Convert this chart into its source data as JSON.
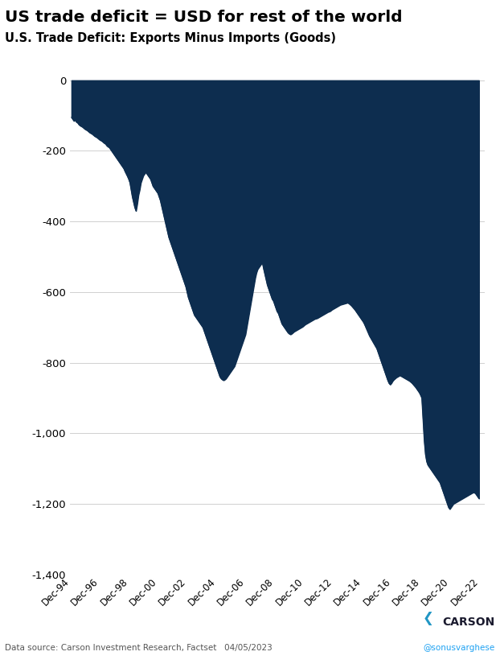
{
  "title": "US trade deficit = USD for rest of the world",
  "subtitle": "U.S. Trade Deficit: Exports Minus Imports (Goods)",
  "fill_color": "#0d2d4f",
  "background_color": "#ffffff",
  "ylim": [
    -1400,
    30
  ],
  "yticks": [
    0,
    -200,
    -400,
    -600,
    -800,
    -1000,
    -1200,
    -1400
  ],
  "footnote": "Data source: Carson Investment Research, Factset   04/05/2023",
  "twitter": "@sonusvarghese",
  "xtick_labels": [
    "Dec-94",
    "Dec-96",
    "Dec-98",
    "Dec-00",
    "Dec-02",
    "Dec-04",
    "Dec-06",
    "Dec-08",
    "Dec-10",
    "Dec-12",
    "Dec-14",
    "Dec-16",
    "Dec-18",
    "Dec-20",
    "Dec-22"
  ],
  "title_color": "#000000",
  "subtitle_color": "#000000",
  "footnote_color": "#555555",
  "twitter_color": "#1da1f2",
  "grid_color": "#d0d0d0",
  "series": [
    -105,
    -110,
    -115,
    -112,
    -118,
    -120,
    -125,
    -128,
    -130,
    -132,
    -135,
    -138,
    -140,
    -142,
    -145,
    -148,
    -150,
    -152,
    -155,
    -158,
    -160,
    -162,
    -165,
    -168,
    -170,
    -172,
    -175,
    -178,
    -180,
    -185,
    -188,
    -190,
    -195,
    -200,
    -205,
    -210,
    -215,
    -220,
    -225,
    -230,
    -235,
    -240,
    -245,
    -250,
    -258,
    -265,
    -272,
    -280,
    -290,
    -310,
    -330,
    -345,
    -360,
    -370,
    -350,
    -325,
    -310,
    -290,
    -280,
    -270,
    -265,
    -260,
    -265,
    -270,
    -275,
    -280,
    -290,
    -300,
    -305,
    -310,
    -315,
    -320,
    -330,
    -340,
    -355,
    -370,
    -385,
    -400,
    -415,
    -430,
    -445,
    -455,
    -465,
    -475,
    -485,
    -495,
    -505,
    -515,
    -525,
    -535,
    -545,
    -555,
    -565,
    -575,
    -585,
    -600,
    -615,
    -625,
    -635,
    -645,
    -655,
    -665,
    -670,
    -675,
    -680,
    -685,
    -690,
    -695,
    -700,
    -710,
    -720,
    -730,
    -740,
    -750,
    -760,
    -770,
    -780,
    -790,
    -800,
    -810,
    -820,
    -830,
    -840,
    -845,
    -848,
    -850,
    -848,
    -845,
    -840,
    -835,
    -830,
    -825,
    -820,
    -815,
    -810,
    -800,
    -790,
    -780,
    -770,
    -760,
    -750,
    -740,
    -730,
    -720,
    -700,
    -680,
    -660,
    -640,
    -620,
    -600,
    -580,
    -560,
    -545,
    -535,
    -530,
    -525,
    -520,
    -518,
    -535,
    -550,
    -565,
    -580,
    -590,
    -600,
    -610,
    -620,
    -625,
    -635,
    -645,
    -655,
    -660,
    -670,
    -680,
    -690,
    -695,
    -700,
    -705,
    -710,
    -715,
    -718,
    -720,
    -718,
    -715,
    -712,
    -710,
    -708,
    -706,
    -704,
    -702,
    -700,
    -698,
    -695,
    -692,
    -690,
    -688,
    -686,
    -684,
    -682,
    -680,
    -678,
    -676,
    -675,
    -674,
    -672,
    -670,
    -668,
    -666,
    -664,
    -662,
    -660,
    -658,
    -656,
    -655,
    -653,
    -650,
    -648,
    -646,
    -644,
    -642,
    -640,
    -638,
    -636,
    -635,
    -634,
    -633,
    -632,
    -631,
    -630,
    -632,
    -635,
    -638,
    -642,
    -646,
    -650,
    -655,
    -660,
    -665,
    -670,
    -675,
    -680,
    -685,
    -692,
    -700,
    -708,
    -716,
    -724,
    -730,
    -736,
    -742,
    -748,
    -754,
    -760,
    -770,
    -780,
    -790,
    -800,
    -810,
    -820,
    -830,
    -840,
    -850,
    -858,
    -862,
    -858,
    -852,
    -848,
    -845,
    -842,
    -840,
    -838,
    -836,
    -838,
    -840,
    -842,
    -844,
    -846,
    -848,
    -850,
    -852,
    -855,
    -858,
    -862,
    -866,
    -870,
    -875,
    -880,
    -885,
    -892,
    -900,
    -960,
    -1020,
    -1060,
    -1080,
    -1090,
    -1095,
    -1100,
    -1105,
    -1110,
    -1115,
    -1120,
    -1125,
    -1130,
    -1135,
    -1140,
    -1150,
    -1160,
    -1170,
    -1180,
    -1190,
    -1200,
    -1210,
    -1215,
    -1210,
    -1205,
    -1200,
    -1198,
    -1196,
    -1194,
    -1192,
    -1190,
    -1188,
    -1186,
    -1184,
    -1182,
    -1180,
    -1178,
    -1176,
    -1174,
    -1172,
    -1170,
    -1168,
    -1168,
    -1170,
    -1175,
    -1180,
    -1185
  ]
}
